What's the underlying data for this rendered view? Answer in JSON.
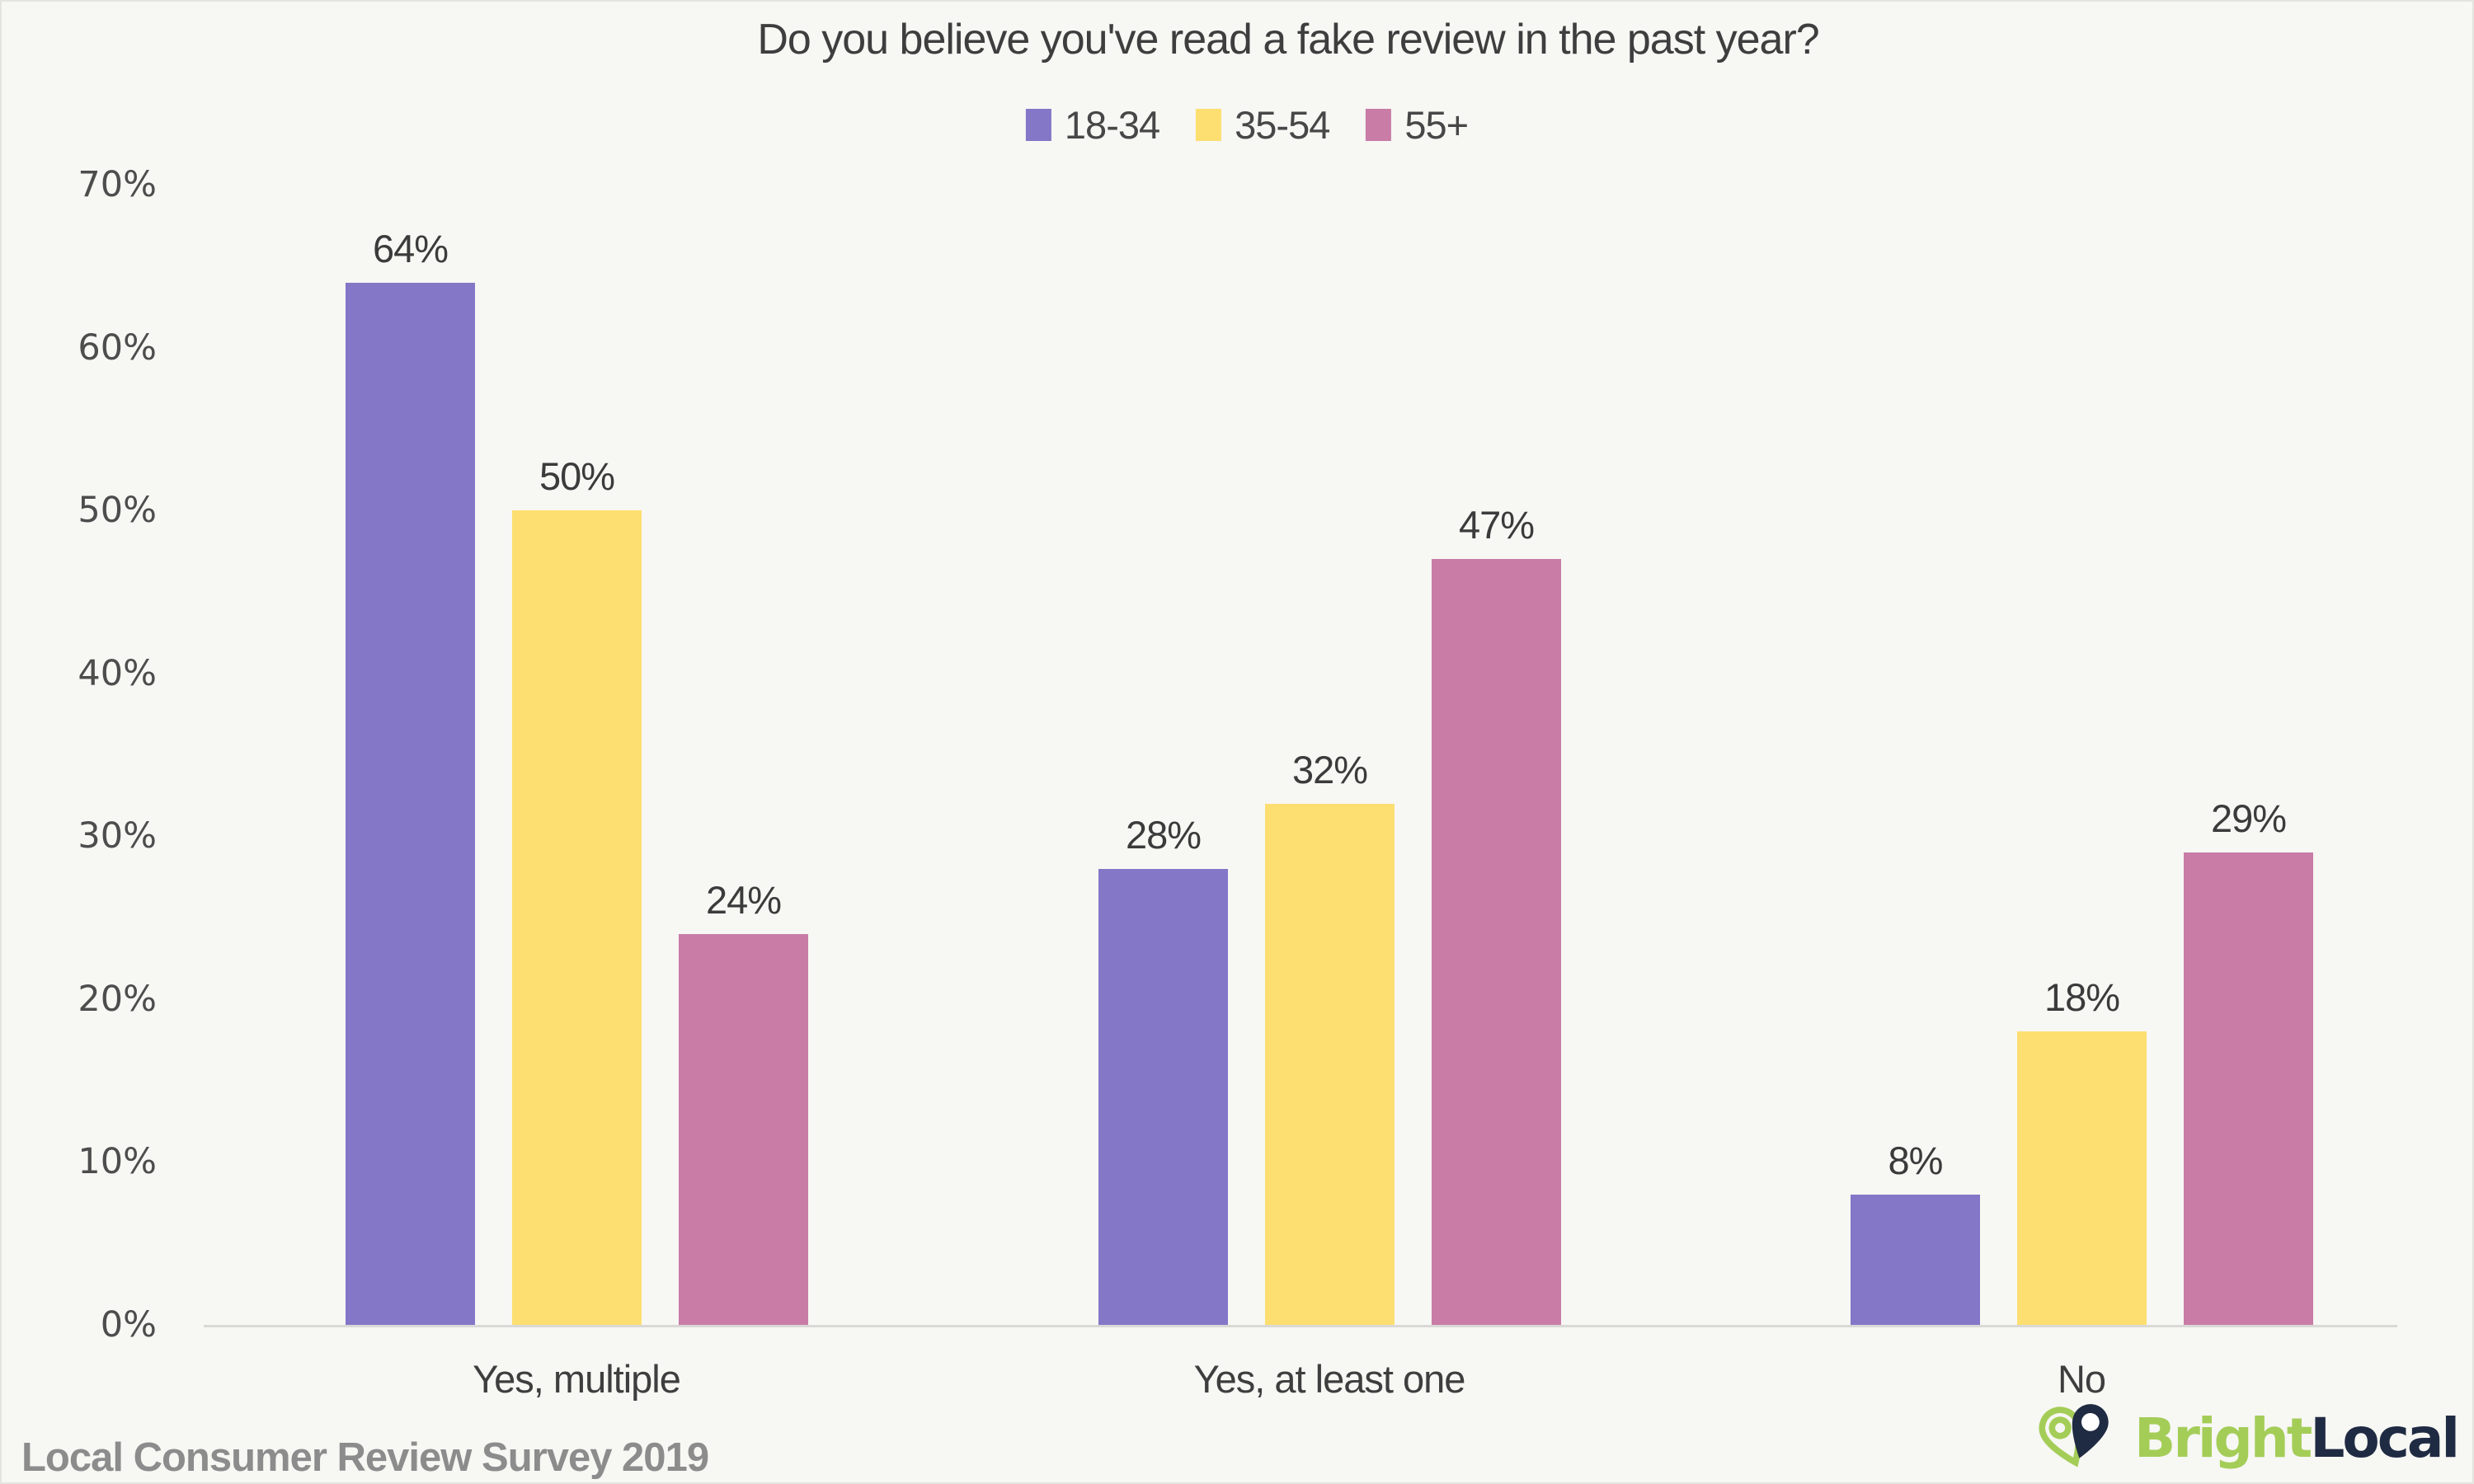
{
  "title": "Do you believe you've read a fake review in the past year?",
  "chart_data": {
    "type": "bar",
    "categories": [
      "Yes, multiple",
      "Yes, at least one",
      "No"
    ],
    "series": [
      {
        "name": "18-34",
        "color": "#8477C7",
        "values": [
          64,
          28,
          8
        ]
      },
      {
        "name": "35-54",
        "color": "#FDDF71",
        "values": [
          50,
          32,
          18
        ]
      },
      {
        "name": "55+",
        "color": "#C87CA6",
        "values": [
          24,
          47,
          29
        ]
      }
    ],
    "title": "Do you believe you've read a fake review in the past year?",
    "xlabel": "",
    "ylabel": "",
    "ylim": [
      0,
      70
    ],
    "yticks": [
      "0%",
      "10%",
      "20%",
      "30%",
      "40%",
      "50%",
      "60%",
      "70%"
    ],
    "value_labels": [
      [
        "64%",
        "28%",
        "8%"
      ],
      [
        "50%",
        "32%",
        "18%"
      ],
      [
        "24%",
        "47%",
        "29%"
      ]
    ],
    "grid": false,
    "legend_position": "top-center",
    "background_color": "#F7F7F4",
    "axis_line_color": "#DAD9D6",
    "text_color": "#3E3E3E"
  },
  "footer": {
    "source": "Local Consumer Review Survey 2019"
  },
  "logo": {
    "bright": "Bright",
    "local": "Local",
    "green": "#A4CD58",
    "navy": "#1F2B42"
  }
}
